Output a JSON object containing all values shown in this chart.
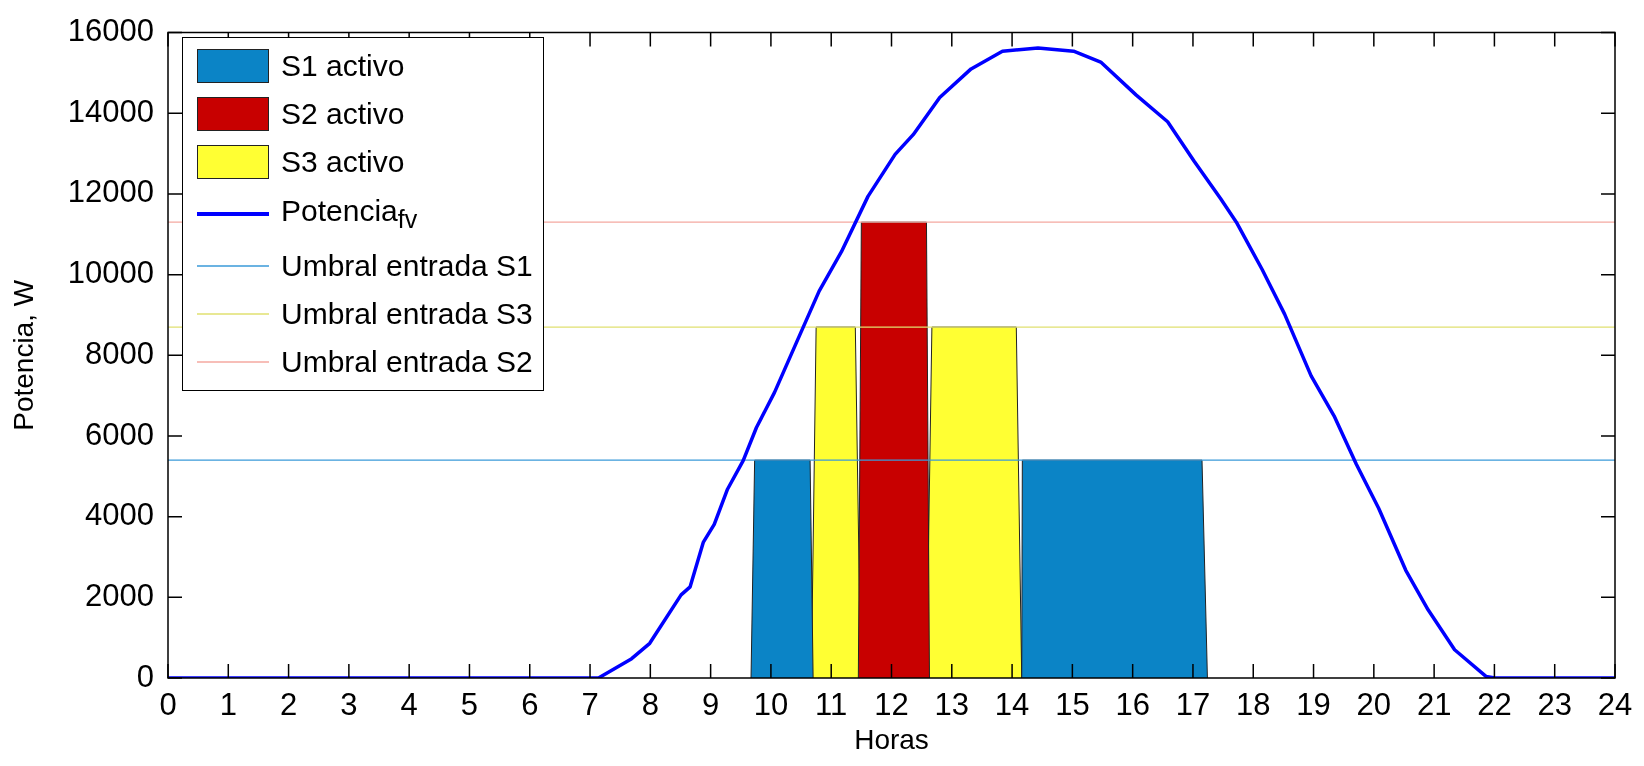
{
  "chart_data": {
    "type": "area",
    "xlabel": "Horas",
    "ylabel": "Potencia, W",
    "xlim": [
      0,
      24
    ],
    "xticks": [
      0,
      1,
      2,
      3,
      4,
      5,
      6,
      7,
      8,
      9,
      10,
      11,
      12,
      13,
      14,
      15,
      16,
      17,
      18,
      19,
      20,
      21,
      22,
      23,
      24
    ],
    "ylim": [
      0,
      16000
    ],
    "yticks": [
      0,
      2000,
      4000,
      6000,
      8000,
      10000,
      12000,
      14000,
      16000
    ],
    "legend": "top left",
    "series": [
      {
        "name": "S1 activo",
        "color": "#0b84c6",
        "x": [
          9.67,
          9.73,
          10.65,
          10.7,
          10.71,
          14.16,
          14.17,
          17.15,
          17.24
        ],
        "values": [
          0,
          5400,
          5400,
          0,
          null,
          0,
          5400,
          5400,
          0
        ]
      },
      {
        "name": "S2 activo",
        "color": "#c80000",
        "x": [
          11.45,
          11.5,
          12.58,
          12.63
        ],
        "values": [
          0,
          11300,
          11300,
          0
        ]
      },
      {
        "name": "S3 activo",
        "color": "#ffff33",
        "x": [
          10.67,
          10.75,
          11.4,
          11.49,
          11.5,
          12.58,
          12.67,
          14.07,
          14.16
        ],
        "values": [
          0,
          8700,
          8700,
          0,
          null,
          0,
          8700,
          8700,
          0
        ]
      },
      {
        "name": "Potencia$_{fv}$",
        "type": "line",
        "color": "#0000ff",
        "x": [
          0,
          7.14,
          7.69,
          7.99,
          8.51,
          8.66,
          8.88,
          9.06,
          9.28,
          9.54,
          9.76,
          10.06,
          10.43,
          10.8,
          11.17,
          11.61,
          12.06,
          12.36,
          12.8,
          13.32,
          13.84,
          14.43,
          15.02,
          15.47,
          16.06,
          16.58,
          17.02,
          17.46,
          17.72,
          18.15,
          18.52,
          18.96,
          19.34,
          19.71,
          20.08,
          20.53,
          20.9,
          21.34,
          21.86,
          22.01,
          24
        ],
        "values": [
          0,
          0,
          480,
          860,
          2060,
          2260,
          3370,
          3810,
          4680,
          5390,
          6210,
          7080,
          8340,
          9590,
          10570,
          11940,
          12980,
          13470,
          14390,
          15100,
          15540,
          15620,
          15540,
          15270,
          14450,
          13790,
          12810,
          11880,
          11300,
          10120,
          9020,
          7490,
          6500,
          5300,
          4210,
          2670,
          1690,
          700,
          40,
          0,
          0
        ]
      }
    ],
    "ref_lines": [
      {
        "axis": "y",
        "value": 5400,
        "label": "Umbral entrada S1",
        "color": "#3a9ad9"
      },
      {
        "axis": "y",
        "value": 8700,
        "label": "Umbral entrada S3",
        "color": "#e0e070"
      },
      {
        "axis": "y",
        "value": 11300,
        "label": "Umbral entrada S2",
        "color": "#f4a8a0"
      }
    ]
  }
}
